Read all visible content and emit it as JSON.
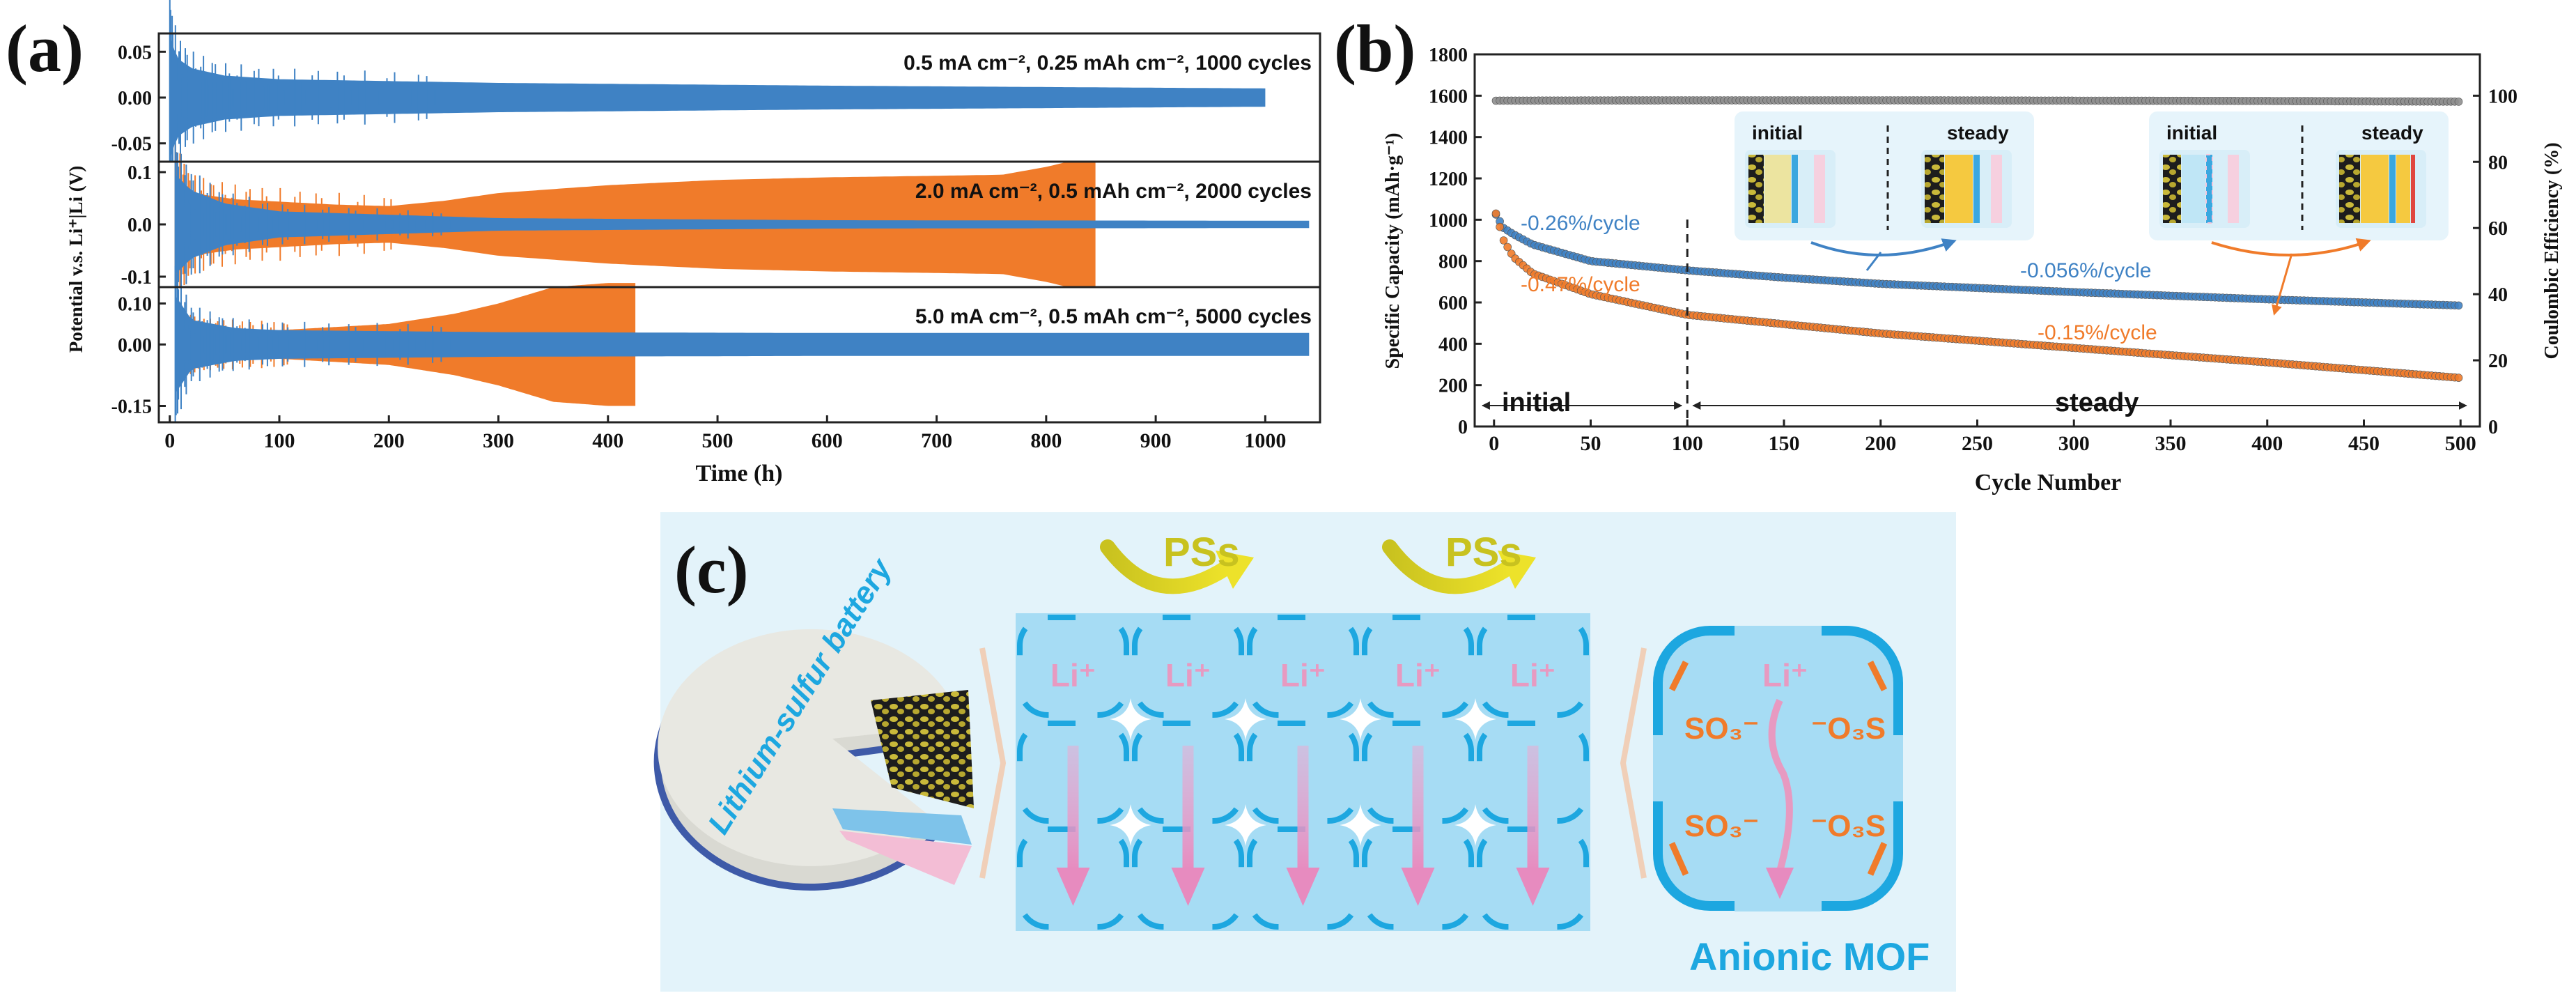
{
  "colors": {
    "blue": "#3f82c4",
    "orange": "#f07b2a",
    "gray": "#8f8f8f",
    "yellow": "#cbc424",
    "cyan": "#1da7e0",
    "pink": "#e79ac1",
    "panel_bg": "#e4f4fb",
    "cell": "#a6dcf4"
  },
  "panel_labels": {
    "a": "(a)",
    "b": "(b)",
    "c": "(c)"
  },
  "chart_data": [
    {
      "id": "a",
      "type": "line",
      "ylabel": "Potential v.s. Li⁺|Li (V)",
      "xlabel": "Time (h)",
      "xlim": [
        -10,
        1050
      ],
      "xticks": [
        0,
        100,
        200,
        300,
        400,
        500,
        600,
        700,
        800,
        900,
        1000
      ],
      "xtick_labels": [
        "0",
        "100",
        "200",
        "300",
        "400",
        "500",
        "600",
        "700",
        "800",
        "900",
        "1000"
      ],
      "subplots": [
        {
          "annotation": "0.5 mA cm⁻², 0.25 mAh cm⁻², 1000 cycles",
          "ylim": [
            -0.07,
            0.07
          ],
          "yticks": [
            0.05,
            0.0,
            -0.05
          ],
          "ytick_labels": [
            "0.05",
            "0.00",
            "-0.05"
          ],
          "series": [
            {
              "name": "blue",
              "t": [
                0,
                3,
                8,
                20,
                50,
                100,
                300,
                600,
                1000
              ],
              "amp": [
                0.068,
                0.055,
                0.042,
                0.032,
                0.024,
                0.02,
                0.016,
                0.013,
                0.01
              ],
              "t_end": 1000
            }
          ]
        },
        {
          "annotation": "2.0 mA cm⁻², 0.5 mAh cm⁻², 2000 cycles",
          "ylim": [
            -0.12,
            0.12
          ],
          "yticks": [
            0.1,
            0.0,
            -0.1
          ],
          "ytick_labels": [
            "0.1",
            "0.0",
            "-0.1"
          ],
          "series": [
            {
              "name": "orange",
              "t": [
                5,
                20,
                60,
                150,
                200,
                250,
                300,
                400,
                500,
                600,
                700,
                760,
                800,
                820,
                845
              ],
              "amp": [
                0.095,
                0.06,
                0.048,
                0.038,
                0.035,
                0.045,
                0.06,
                0.075,
                0.085,
                0.09,
                0.093,
                0.095,
                0.11,
                0.12,
                0.12
              ],
              "t_end": 845
            },
            {
              "name": "blue",
              "t": [
                5,
                20,
                50,
                100,
                300,
                600,
                1000,
                1040
              ],
              "amp": [
                0.095,
                0.065,
                0.04,
                0.025,
                0.012,
                0.008,
                0.007,
                0.007
              ],
              "t_end": 1040
            }
          ]
        },
        {
          "annotation": "5.0 mA cm⁻², 0.5 mAh cm⁻², 5000 cycles",
          "ylim": [
            -0.19,
            0.14
          ],
          "yticks": [
            0.1,
            0.0,
            -0.15
          ],
          "ytick_labels": [
            "0.10",
            "0.00",
            "-0.15"
          ],
          "series": [
            {
              "name": "orange",
              "t": [
                10,
                30,
                100,
                200,
                260,
                300,
                350,
                400,
                425
              ],
              "amp": [
                0.05,
                0.04,
                0.035,
                0.05,
                0.075,
                0.1,
                0.14,
                0.15,
                0.15
              ],
              "t_end": 425
            },
            {
              "name": "blue",
              "t": [
                5,
                20,
                60,
                100,
                300,
                600,
                1000,
                1040
              ],
              "amp": [
                0.12,
                0.06,
                0.04,
                0.035,
                0.03,
                0.028,
                0.028,
                0.028
              ],
              "t_end": 1040
            }
          ]
        }
      ]
    },
    {
      "id": "b",
      "type": "scatter",
      "xlabel": "Cycle Number",
      "ylabel": "Specific Capacity (mAh·g⁻¹)",
      "y2label": "Coulombic Efficiency (%)",
      "xlim": [
        -10,
        510
      ],
      "ylim": [
        0,
        1800
      ],
      "y2lim": [
        0,
        112.5
      ],
      "xticks": [
        0,
        50,
        100,
        150,
        200,
        250,
        300,
        350,
        400,
        450,
        500
      ],
      "yticks": [
        0,
        200,
        400,
        600,
        800,
        1000,
        1200,
        1400,
        1600,
        1800
      ],
      "y2ticks": [
        0,
        20,
        40,
        60,
        80,
        100
      ],
      "series": [
        {
          "name": "Coulombic efficiency",
          "axis": "right",
          "x": [
            1,
            100,
            200,
            300,
            400,
            500
          ],
          "y": [
            98.5,
            98.6,
            98.6,
            98.5,
            98.4,
            98.2
          ]
        },
        {
          "name": "Blue capacity",
          "axis": "left",
          "x": [
            1,
            5,
            10,
            20,
            50,
            100,
            150,
            200,
            300,
            400,
            500
          ],
          "y": [
            1025,
            960,
            930,
            880,
            800,
            755,
            720,
            690,
            650,
            615,
            585
          ]
        },
        {
          "name": "Orange capacity",
          "axis": "left",
          "x": [
            1,
            5,
            10,
            20,
            50,
            100,
            150,
            200,
            300,
            400,
            500
          ],
          "y": [
            1030,
            900,
            820,
            740,
            640,
            540,
            495,
            450,
            380,
            310,
            235
          ]
        }
      ],
      "annotations": {
        "blue_initial_rate": "-0.26%/cycle",
        "orange_initial_rate": "-0.47%/cycle",
        "blue_steady_rate": "-0.056%/cycle",
        "orange_steady_rate": "-0.15%/cycle",
        "region_initial": "initial",
        "region_steady": "steady",
        "inset_labels": [
          "initial",
          "steady",
          "initial",
          "steady"
        ]
      }
    }
  ],
  "diagram_c": {
    "battery_label": "Lithium-sulfur battery",
    "pss_label": "PSs",
    "li_ion_label": "Li⁺",
    "sulfonate_left": "SO₃⁻",
    "sulfonate_right": "⁻O₃S",
    "mof_label": "Anionic MOF"
  }
}
